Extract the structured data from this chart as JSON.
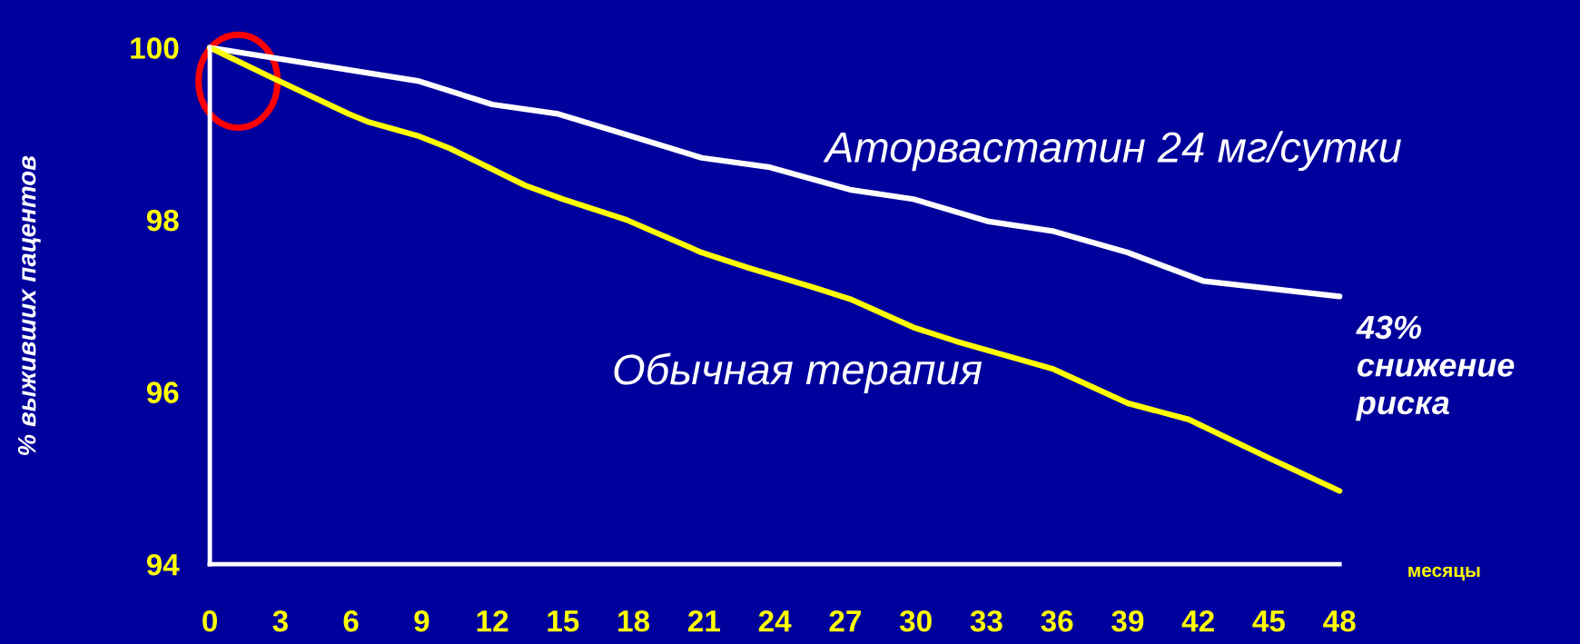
{
  "chart_data": {
    "type": "line",
    "xlabel": "месяцы",
    "ylabel": "% выживших пацентов",
    "xlim": [
      0,
      48
    ],
    "ylim": [
      94,
      100
    ],
    "xticks": [
      0,
      3,
      6,
      9,
      12,
      15,
      18,
      21,
      24,
      27,
      30,
      33,
      36,
      39,
      42,
      45,
      48
    ],
    "yticks": [
      94,
      96,
      98,
      100
    ],
    "grid": false,
    "legend": false,
    "marker": "none",
    "line_style": "solid",
    "series": [
      {
        "name": "Аторвастатин 24 мг/сутки",
        "color": "#ffffff",
        "x": [
          0,
          8.9,
          12.0,
          14.8,
          17.7,
          20.9,
          23.8,
          27.2,
          29.9,
          33.1,
          35.8,
          39.0,
          42.2,
          48
        ],
        "values": [
          100,
          99.61,
          99.34,
          99.23,
          98.99,
          98.72,
          98.61,
          98.35,
          98.24,
          97.98,
          97.87,
          97.62,
          97.29,
          97.11
        ]
      },
      {
        "name": "Обычная терапия",
        "color": "#ffff00",
        "x": [
          0,
          2.5,
          5.9,
          6.7,
          8.9,
          10.2,
          13.4,
          15.0,
          17.7,
          20.9,
          22.9,
          25.6,
          27.2,
          29.9,
          31.7,
          35.8,
          39.0,
          41.6,
          45.1,
          48
        ],
        "values": [
          100,
          99.67,
          99.23,
          99.14,
          98.97,
          98.83,
          98.4,
          98.24,
          98.0,
          97.62,
          97.44,
          97.22,
          97.08,
          96.75,
          96.59,
          96.27,
          95.87,
          95.68,
          95.22,
          94.85
        ]
      }
    ],
    "annotations": [
      "43%\nснижение\nриска"
    ]
  }
}
